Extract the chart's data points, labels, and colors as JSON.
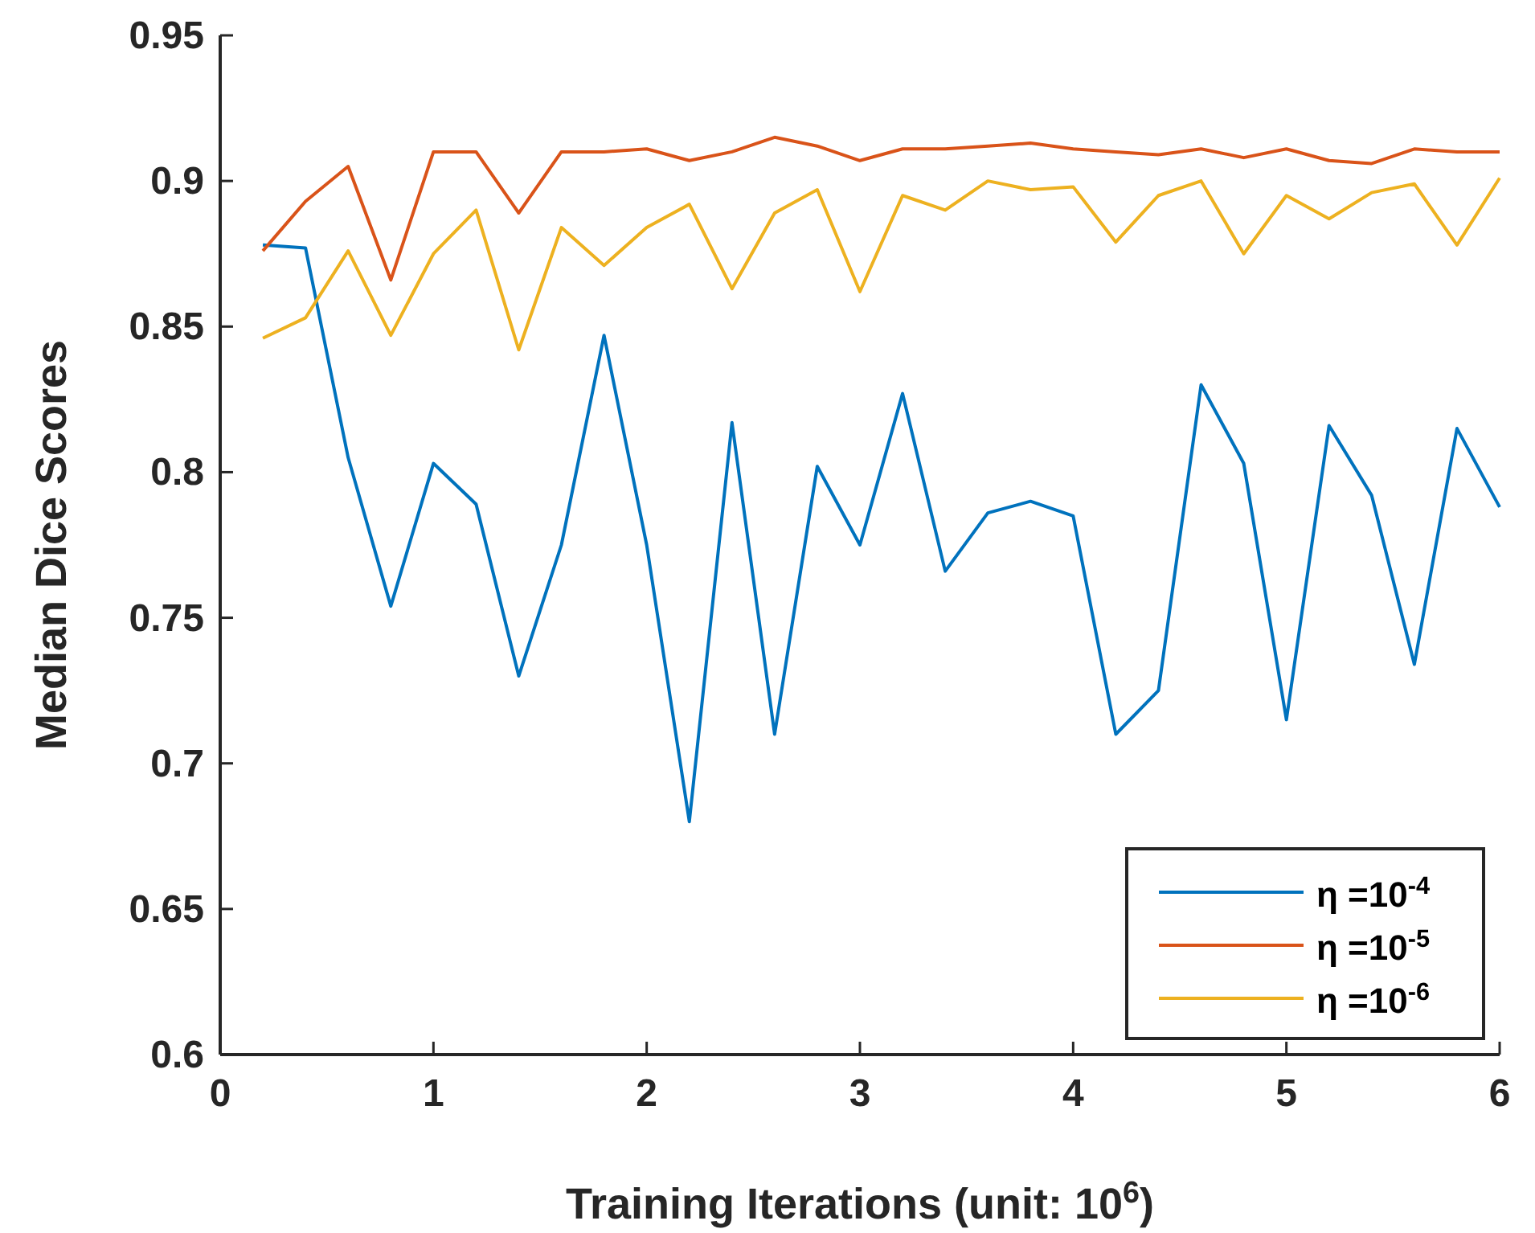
{
  "chart_data": {
    "type": "line",
    "xlabel": "Training Iterations (unit: 10$^{6}$)",
    "ylabel": "Median Dice Scores",
    "x": [
      0.2,
      0.4,
      0.6,
      0.8,
      1.0,
      1.2,
      1.4,
      1.6,
      1.8,
      2.0,
      2.2,
      2.4,
      2.6,
      2.8,
      3.0,
      3.2,
      3.4,
      3.6,
      3.8,
      4.0,
      4.2,
      4.4,
      4.6,
      4.8,
      5.0,
      5.2,
      5.4,
      5.6,
      5.8,
      6.0
    ],
    "series": [
      {
        "name": "η =10$^{-4}$",
        "color": "#0072bd",
        "values": [
          0.878,
          0.877,
          0.805,
          0.754,
          0.803,
          0.789,
          0.73,
          0.775,
          0.847,
          0.775,
          0.68,
          0.817,
          0.71,
          0.802,
          0.775,
          0.827,
          0.766,
          0.786,
          0.79,
          0.785,
          0.71,
          0.725,
          0.83,
          0.803,
          0.715,
          0.816,
          0.792,
          0.734,
          0.815,
          0.788
        ]
      },
      {
        "name": "η =10$^{-5}$",
        "color": "#d95319",
        "values": [
          0.876,
          0.893,
          0.905,
          0.866,
          0.91,
          0.91,
          0.889,
          0.91,
          0.91,
          0.911,
          0.907,
          0.91,
          0.915,
          0.912,
          0.907,
          0.911,
          0.911,
          0.912,
          0.913,
          0.911,
          0.91,
          0.909,
          0.911,
          0.908,
          0.911,
          0.907,
          0.906,
          0.911,
          0.91,
          0.91
        ]
      },
      {
        "name": "η =10$^{-6}$",
        "color": "#edb120",
        "values": [
          0.846,
          0.853,
          0.876,
          0.847,
          0.875,
          0.89,
          0.842,
          0.884,
          0.871,
          0.884,
          0.892,
          0.863,
          0.889,
          0.897,
          0.862,
          0.895,
          0.89,
          0.9,
          0.897,
          0.898,
          0.879,
          0.895,
          0.9,
          0.875,
          0.895,
          0.887,
          0.896,
          0.899,
          0.878,
          0.901
        ]
      }
    ],
    "xlim": [
      0,
      6
    ],
    "xticks": [
      0,
      1,
      2,
      3,
      4,
      5,
      6
    ],
    "ylim": [
      0.6,
      0.95
    ],
    "yticks": [
      0.6,
      0.65,
      0.7,
      0.75,
      0.8,
      0.85,
      0.9,
      0.95
    ],
    "legend": "bottom right",
    "grid": false
  }
}
